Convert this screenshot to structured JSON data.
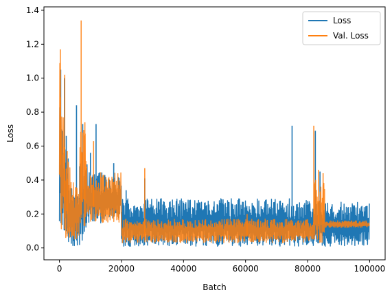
{
  "chart_data": {
    "type": "line",
    "xlabel": "Batch",
    "ylabel": "Loss",
    "xlim": [
      -5000,
      105000
    ],
    "ylim": [
      -0.07,
      1.42
    ],
    "xticks": [
      0,
      20000,
      40000,
      60000,
      80000,
      100000
    ],
    "xtick_labels": [
      "0",
      "20000",
      "40000",
      "60000",
      "80000",
      "100000"
    ],
    "yticks": [
      0.0,
      0.2,
      0.4,
      0.6,
      0.8,
      1.0,
      1.2,
      1.4
    ],
    "ytick_labels": [
      "0.0",
      "0.2",
      "0.4",
      "0.6",
      "0.8",
      "1.0",
      "1.2",
      "1.4"
    ],
    "grid": false,
    "legend_position": "upper right",
    "series": [
      {
        "name": "Loss",
        "color": "#1f77b4",
        "band_segments": [
          {
            "x_start": 0,
            "x_end": 500,
            "low": 0.1,
            "high": 0.9
          },
          {
            "x_start": 500,
            "x_end": 1500,
            "low": 0.03,
            "high": 0.75
          },
          {
            "x_start": 1500,
            "x_end": 3000,
            "low": 0.01,
            "high": 0.6
          },
          {
            "x_start": 3000,
            "x_end": 6500,
            "low": 0.01,
            "high": 0.35
          },
          {
            "x_start": 6500,
            "x_end": 9000,
            "low": 0.04,
            "high": 0.55
          },
          {
            "x_start": 9000,
            "x_end": 15000,
            "low": 0.13,
            "high": 0.45
          },
          {
            "x_start": 15000,
            "x_end": 20000,
            "low": 0.17,
            "high": 0.42
          },
          {
            "x_start": 20000,
            "x_end": 75000,
            "low": 0.01,
            "high": 0.29
          },
          {
            "x_start": 75000,
            "x_end": 86000,
            "low": 0.01,
            "high": 0.28
          },
          {
            "x_start": 86000,
            "x_end": 100000,
            "low": 0.01,
            "high": 0.27
          }
        ],
        "peaks": [
          {
            "x": 400,
            "y": 1.05
          },
          {
            "x": 1600,
            "y": 1.0
          },
          {
            "x": 2200,
            "y": 0.66
          },
          {
            "x": 5500,
            "y": 0.84
          },
          {
            "x": 7500,
            "y": 0.73
          },
          {
            "x": 10000,
            "y": 0.56
          },
          {
            "x": 11800,
            "y": 0.73
          },
          {
            "x": 17500,
            "y": 0.5
          },
          {
            "x": 21500,
            "y": 0.34
          },
          {
            "x": 27500,
            "y": 0.41
          },
          {
            "x": 75000,
            "y": 0.72
          },
          {
            "x": 82500,
            "y": 0.69
          },
          {
            "x": 84000,
            "y": 0.45
          }
        ]
      },
      {
        "name": "Val. Loss",
        "color": "#ff7f0e",
        "band_segments": [
          {
            "x_start": 0,
            "x_end": 500,
            "low": 0.2,
            "high": 1.17
          },
          {
            "x_start": 500,
            "x_end": 1800,
            "low": 0.05,
            "high": 0.8
          },
          {
            "x_start": 1800,
            "x_end": 3500,
            "low": 0.05,
            "high": 0.55
          },
          {
            "x_start": 3500,
            "x_end": 6500,
            "low": 0.02,
            "high": 0.4
          },
          {
            "x_start": 6500,
            "x_end": 9000,
            "low": 0.1,
            "high": 0.7
          },
          {
            "x_start": 9000,
            "x_end": 20000,
            "low": 0.15,
            "high": 0.45
          },
          {
            "x_start": 20000,
            "x_end": 82000,
            "low": 0.03,
            "high": 0.17
          },
          {
            "x_start": 82000,
            "x_end": 85500,
            "low": 0.03,
            "high": 0.4
          },
          {
            "x_start": 85500,
            "x_end": 100000,
            "low": 0.12,
            "high": 0.16
          }
        ],
        "peaks": [
          {
            "x": 300,
            "y": 1.17
          },
          {
            "x": 1700,
            "y": 1.02
          },
          {
            "x": 2500,
            "y": 0.57
          },
          {
            "x": 7000,
            "y": 1.34
          },
          {
            "x": 8200,
            "y": 0.74
          },
          {
            "x": 11000,
            "y": 0.63
          },
          {
            "x": 27500,
            "y": 0.47
          },
          {
            "x": 60500,
            "y": 0.2
          },
          {
            "x": 82000,
            "y": 0.72
          },
          {
            "x": 83500,
            "y": 0.46
          },
          {
            "x": 85000,
            "y": 0.44
          }
        ]
      }
    ]
  }
}
